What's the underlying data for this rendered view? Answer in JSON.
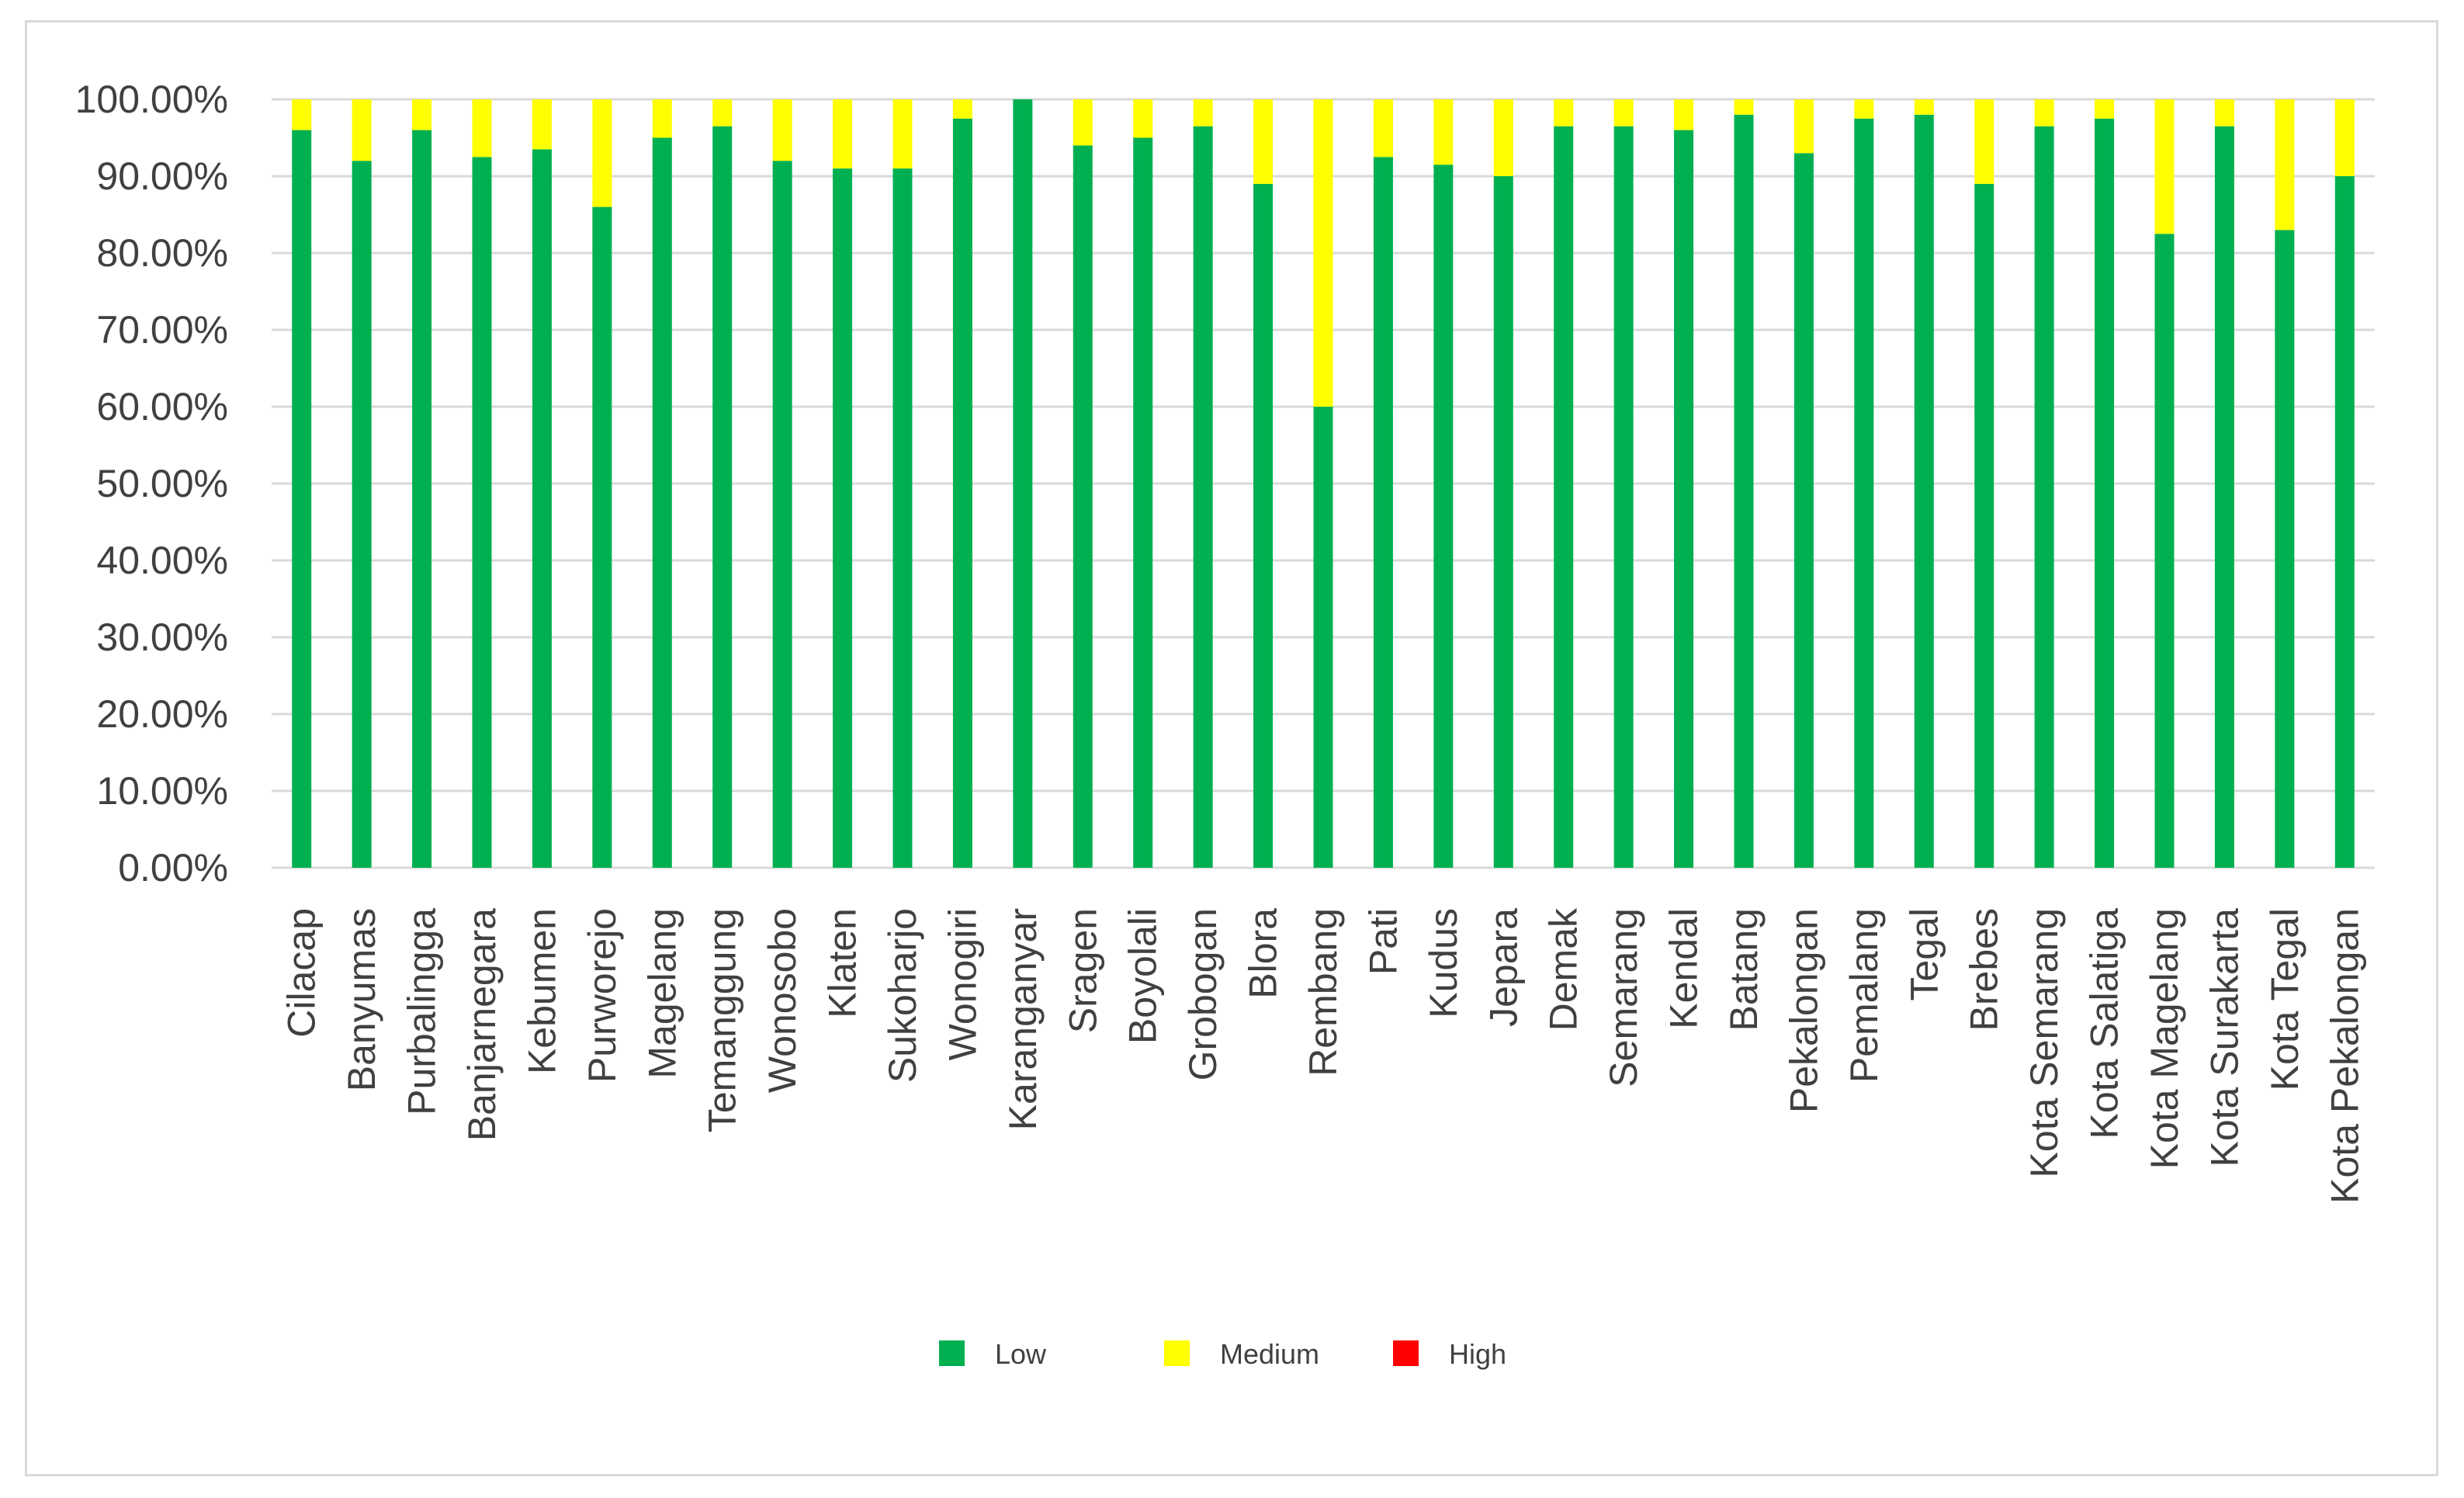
{
  "chart_data": {
    "type": "bar",
    "stacked": true,
    "percent_stacked": true,
    "title": "",
    "xlabel": "",
    "ylabel": "",
    "ylim": [
      0,
      100
    ],
    "y_ticks": [
      0,
      10,
      20,
      30,
      40,
      50,
      60,
      70,
      80,
      90,
      100
    ],
    "y_tick_labels": [
      "0.00%",
      "10.00%",
      "20.00%",
      "30.00%",
      "40.00%",
      "50.00%",
      "60.00%",
      "70.00%",
      "80.00%",
      "90.00%",
      "100.00%"
    ],
    "grid": true,
    "legend_position": "bottom",
    "categories": [
      "Cilacap",
      "Banyumas",
      "Purbalingga",
      "Banjarnegara",
      "Kebumen",
      "Purworejo",
      "Magelang",
      "Temanggung",
      "Wonosobo",
      "Klaten",
      "Sukoharjo",
      "Wonogiri",
      "Karanganyar",
      "Sragen",
      "Boyolali",
      "Grobogan",
      "Blora",
      "Rembang",
      "Pati",
      "Kudus",
      "Jepara",
      "Demak",
      "Semarang",
      "Kendal",
      "Batang",
      "Pekalongan",
      "Pemalang",
      "Tegal",
      "Brebes",
      "Kota Semarang",
      "Kota Salatiga",
      "Kota Magelang",
      "Kota Surakarta",
      "Kota Tegal",
      "Kota Pekalongan"
    ],
    "series": [
      {
        "name": "Low",
        "color": "#00b050",
        "values": [
          96,
          92,
          96,
          92.5,
          93.5,
          86,
          95,
          96.5,
          92,
          91,
          91,
          97.5,
          100,
          94,
          95,
          96.5,
          89,
          60,
          92.5,
          91.5,
          90,
          96.5,
          96.5,
          96,
          98,
          93,
          97.5,
          98,
          89,
          96.5,
          97.5,
          82.5,
          96.5,
          83,
          90
        ]
      },
      {
        "name": "Medium",
        "color": "#ffff00",
        "values": [
          4,
          8,
          4,
          7.5,
          6.5,
          14,
          5,
          3.5,
          8,
          9,
          9,
          2.5,
          0,
          6,
          5,
          3.5,
          11,
          40,
          7.5,
          8.5,
          10,
          3.5,
          3.5,
          4,
          2,
          7,
          2.5,
          2,
          11,
          3.5,
          2.5,
          17.5,
          3.5,
          17,
          10
        ]
      },
      {
        "name": "High",
        "color": "#ff0000",
        "values": [
          0,
          0,
          0,
          0,
          0,
          0,
          0,
          0,
          0,
          0,
          0,
          0,
          0,
          0,
          0,
          0,
          0,
          0,
          0,
          0,
          0,
          0,
          0,
          0,
          0,
          0,
          0,
          0,
          0,
          0,
          0,
          0,
          0,
          0,
          0
        ]
      }
    ]
  },
  "colors": {
    "grid": "#d9d9d9",
    "axis": "#d9d9d9",
    "text": "#404040"
  }
}
